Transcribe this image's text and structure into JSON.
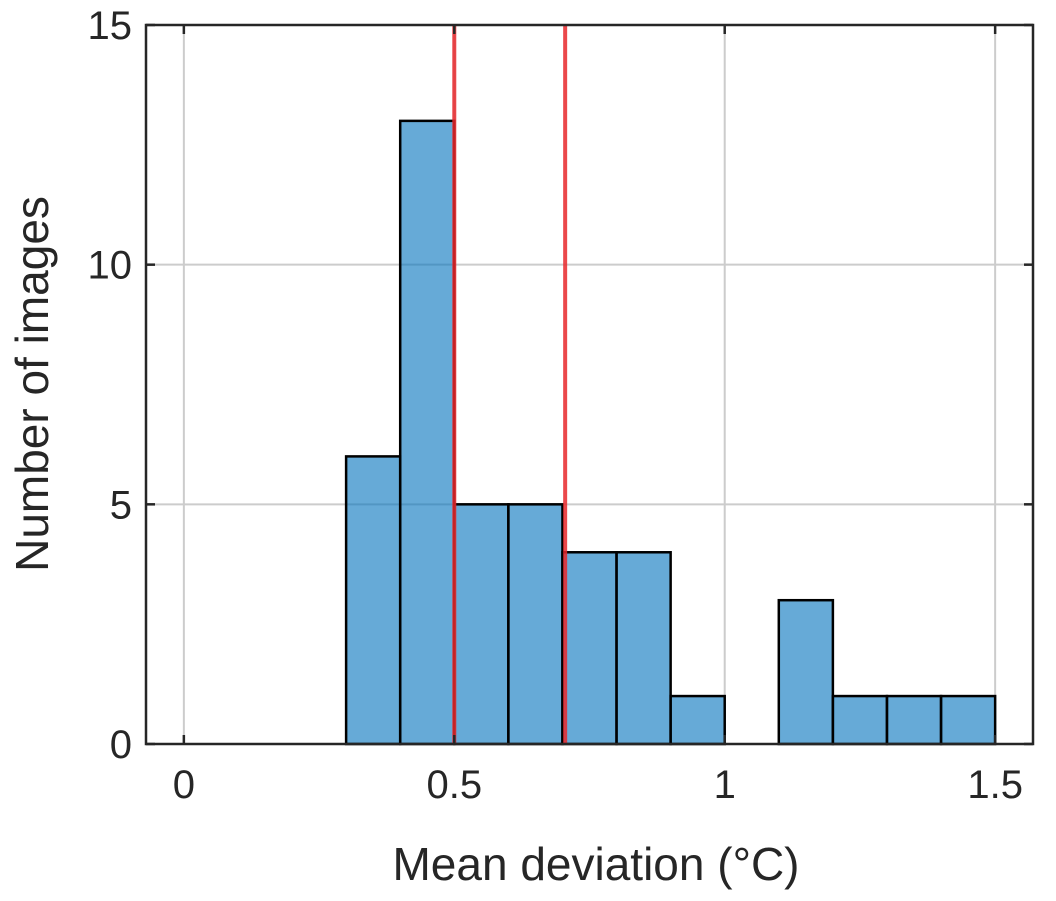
{
  "chart_data": {
    "type": "bar",
    "subtype": "histogram",
    "title": "",
    "xlabel": "Mean deviation (°C)",
    "ylabel": "Number of images",
    "xlim": [
      -0.07,
      1.57
    ],
    "ylim": [
      0,
      15
    ],
    "xticks": [
      0,
      0.5,
      1,
      1.5
    ],
    "xtick_labels": [
      "0",
      "0.5",
      "1",
      "1.5"
    ],
    "yticks": [
      0,
      5,
      10,
      15
    ],
    "ytick_labels": [
      "0",
      "5",
      "10",
      "15"
    ],
    "grid": true,
    "bin_edges": [
      0.3,
      0.4,
      0.5,
      0.6,
      0.7,
      0.8,
      0.9,
      1.0,
      1.1,
      1.2,
      1.3,
      1.4,
      1.5
    ],
    "values": [
      6,
      13,
      5,
      5,
      4,
      4,
      1,
      0,
      3,
      1,
      1,
      1
    ],
    "reference_lines": [
      {
        "x": 0.5,
        "orientation": "vertical"
      },
      {
        "x": 0.705,
        "orientation": "vertical"
      }
    ],
    "colors": {
      "bar_fill": "#0072BD",
      "bar_fill_opacity": 0.6,
      "bar_edge": "#000000",
      "reference_line": "#E8282B",
      "reference_line_opacity": 0.85,
      "grid": "#cccccc",
      "axis": "#262626"
    }
  }
}
